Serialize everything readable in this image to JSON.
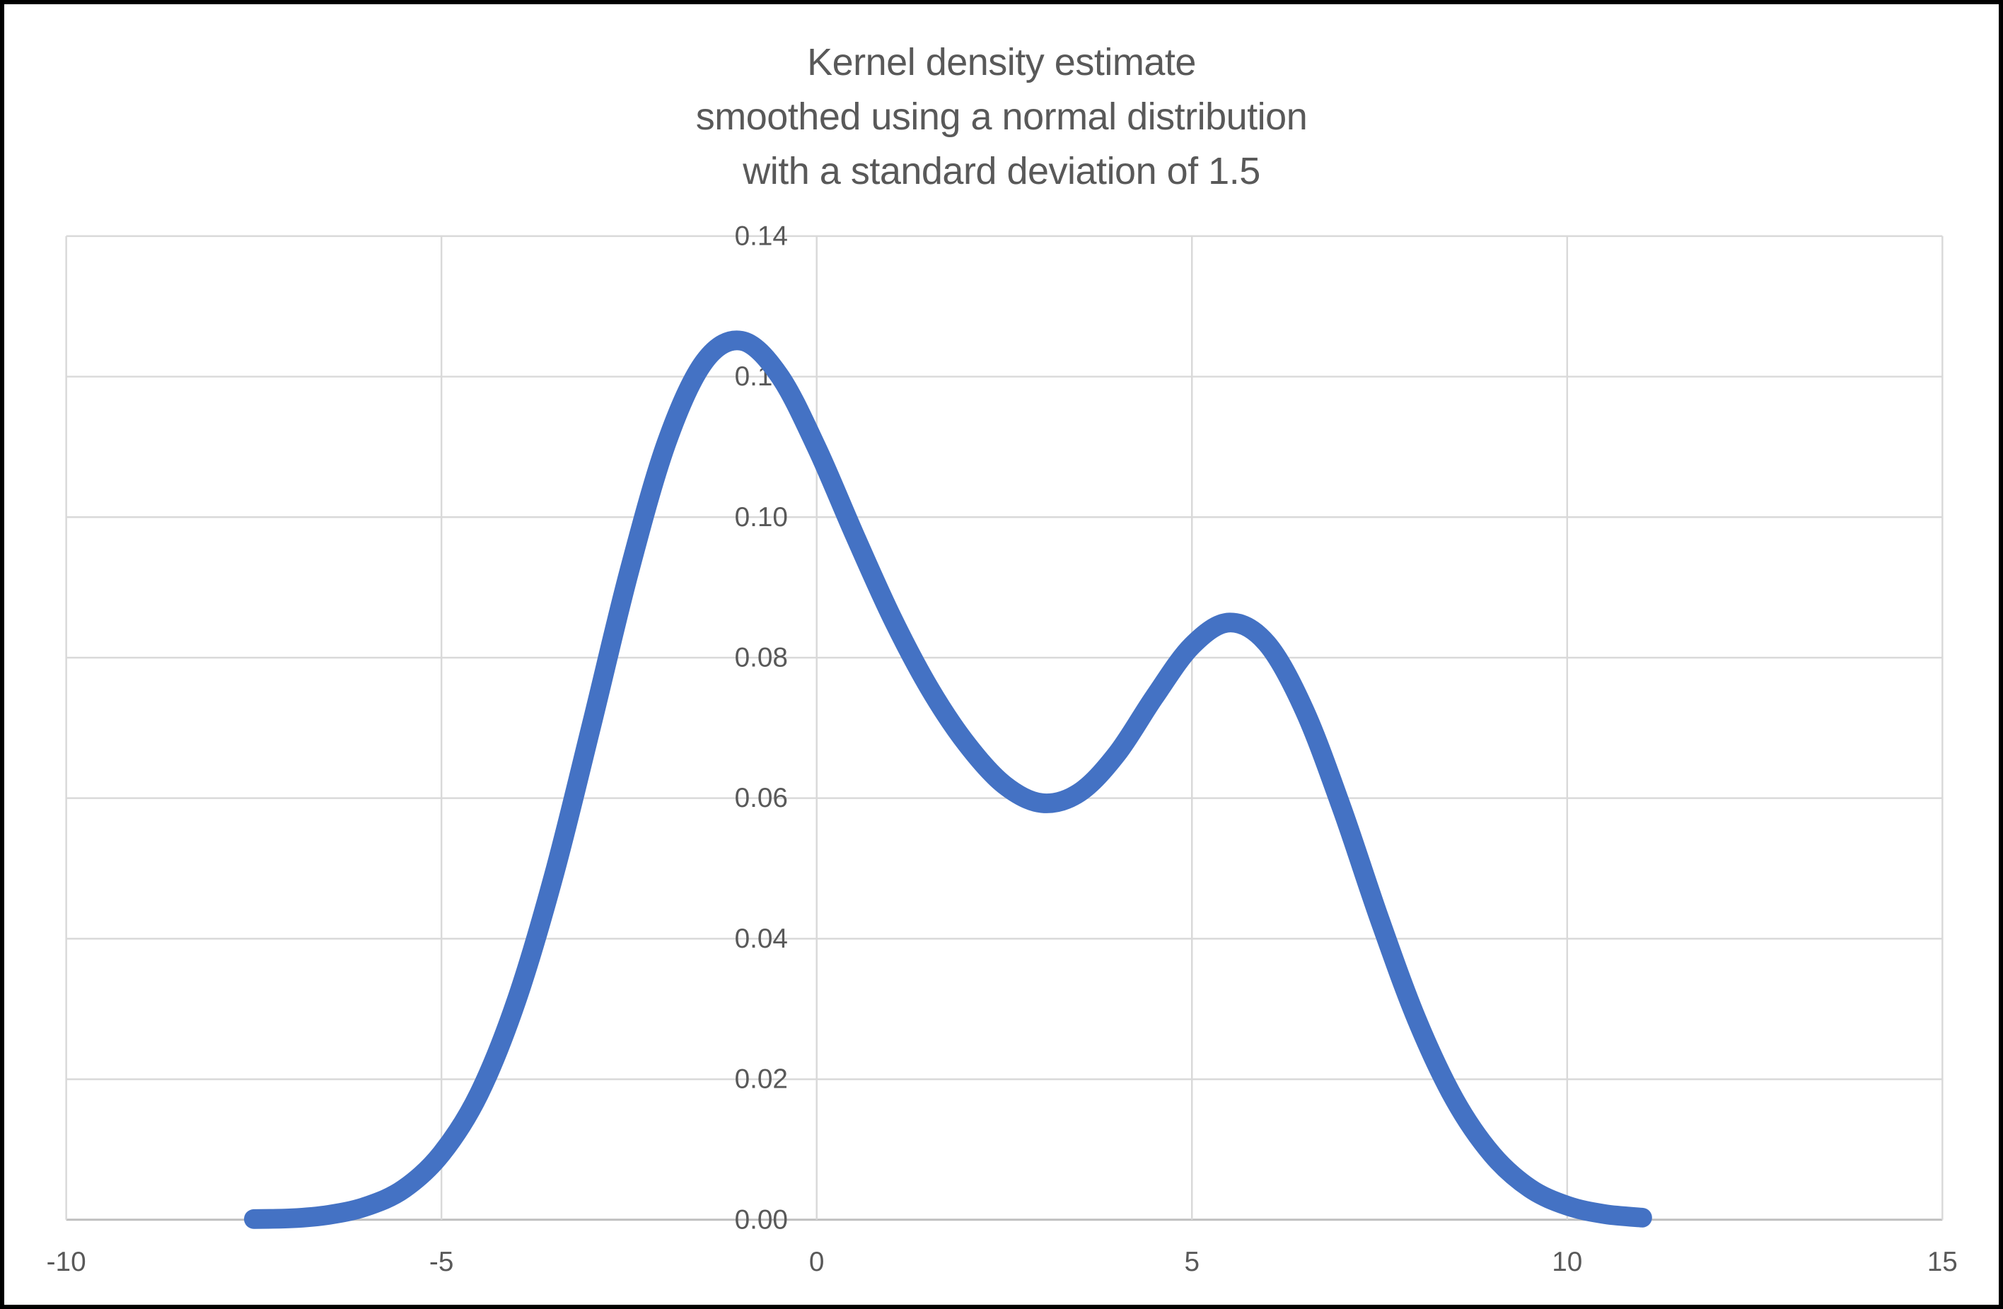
{
  "title": {
    "lines": [
      "Kernel density estimate",
      "smoothed using a normal distribution",
      "with a standard deviation of 1.5"
    ]
  },
  "colors": {
    "curve": "#4472C4",
    "gridline": "#D9D9D9",
    "axis_line": "#BFBFBF",
    "text": "#595959",
    "background": "#FFFFFF",
    "frame": "#000000"
  },
  "chart_data": {
    "type": "line",
    "title": "Kernel density estimate smoothed using a normal distribution with a standard deviation of 1.5",
    "xlabel": "",
    "ylabel": "",
    "xlim": [
      -10,
      15
    ],
    "ylim": [
      0,
      0.14
    ],
    "grid": true,
    "legend": false,
    "x_ticks": {
      "values": [
        -10,
        -5,
        0,
        5,
        10,
        15
      ],
      "labels": [
        "-10",
        "-5",
        "0",
        "5",
        "10",
        "15"
      ]
    },
    "y_ticks": {
      "values": [
        0.0,
        0.02,
        0.04,
        0.06,
        0.08,
        0.1,
        0.12,
        0.14
      ],
      "labels": [
        "0.00",
        "0.02",
        "0.04",
        "0.06",
        "0.08",
        "0.10",
        "0.12",
        "0.14"
      ]
    },
    "smoothing": {
      "kernel": "normal",
      "standard_deviation": 1.5
    },
    "series": [
      {
        "name": "kernel-density-estimate",
        "x": [
          -7.5,
          -7,
          -6.5,
          -6,
          -5.5,
          -5,
          -4.5,
          -4,
          -3.5,
          -3,
          -2.5,
          -2,
          -1.5,
          -1,
          -0.5,
          0,
          0.5,
          1,
          1.5,
          2,
          2.5,
          3,
          3.5,
          4,
          4.5,
          5,
          5.5,
          6,
          6.5,
          7,
          7.5,
          8,
          8.5,
          9,
          9.5,
          10,
          10.5,
          11
        ],
        "y": [
          0.0001,
          0.0002,
          0.0007,
          0.0019,
          0.0044,
          0.0094,
          0.0179,
          0.0312,
          0.0491,
          0.0704,
          0.0922,
          0.1106,
          0.1221,
          0.1251,
          0.1202,
          0.1099,
          0.0976,
          0.0858,
          0.0757,
          0.0677,
          0.0619,
          0.0593,
          0.0608,
          0.0663,
          0.0744,
          0.0817,
          0.085,
          0.082,
          0.0725,
          0.0585,
          0.0428,
          0.0284,
          0.0171,
          0.0093,
          0.0045,
          0.002,
          0.0008,
          0.0003
        ]
      }
    ]
  }
}
